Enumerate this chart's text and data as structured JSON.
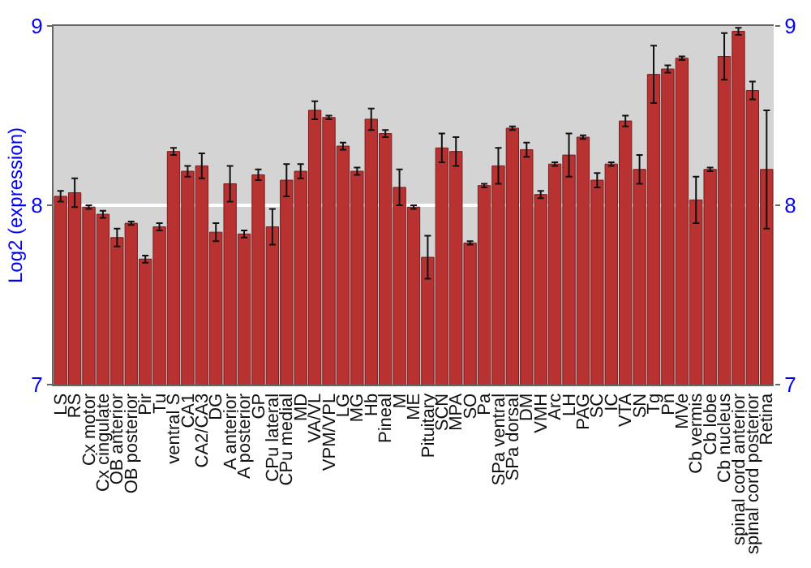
{
  "chart_data": {
    "type": "bar",
    "ylabel": "Log2 (expression)",
    "categories": [
      "LS",
      "RS",
      "Cx motor",
      "Cx cingulate",
      "OB anterior",
      "OB posterior",
      "Pir",
      "Tu",
      "ventral S",
      "CA1",
      "CA2/CA3",
      "DG",
      "A anterior",
      "A posterior",
      "GP",
      "CPu lateral",
      "CPu medial",
      "MD",
      "VA/VL",
      "VPM/VPL",
      "LG",
      "MG",
      "Hb",
      "Pineal",
      "M",
      "ME",
      "Pituitary",
      "SCN",
      "MPA",
      "SO",
      "Pa",
      "SPa ventral",
      "SPa dorsal",
      "DM",
      "VMH",
      "Arc",
      "LH",
      "PAG",
      "SC",
      "IC",
      "VTA",
      "SN",
      "Tg",
      "Pn",
      "MVe",
      "Cb vermis",
      "Cb lobe",
      "Cb nucleus",
      "spinal cord anterior",
      "spinal cord posterior",
      "Retina"
    ],
    "series": [
      {
        "color": "#b83232",
        "values": [
          8.05,
          8.07,
          7.99,
          7.95,
          7.82,
          7.9,
          7.7,
          7.88,
          8.3,
          8.19,
          8.22,
          7.85,
          8.12,
          7.84,
          8.17,
          7.88,
          8.14,
          8.19,
          8.53,
          8.49,
          8.33,
          8.19,
          8.48,
          8.4,
          8.1,
          7.99,
          7.71,
          8.32,
          8.3,
          7.79,
          8.11,
          8.22,
          8.43,
          8.31,
          8.06,
          8.23,
          8.28,
          8.38,
          8.14,
          8.23,
          8.47,
          8.2,
          8.73,
          8.76,
          8.82,
          8.03,
          8.2,
          8.83,
          8.97,
          8.64,
          8.2
        ],
        "errors": [
          0.03,
          0.08,
          0.01,
          0.02,
          0.05,
          0.01,
          0.02,
          0.02,
          0.02,
          0.03,
          0.07,
          0.05,
          0.1,
          0.02,
          0.03,
          0.1,
          0.09,
          0.04,
          0.05,
          0.01,
          0.02,
          0.02,
          0.06,
          0.02,
          0.1,
          0.01,
          0.12,
          0.08,
          0.08,
          0.01,
          0.01,
          0.1,
          0.01,
          0.04,
          0.02,
          0.01,
          0.12,
          0.01,
          0.04,
          0.01,
          0.03,
          0.08,
          0.16,
          0.02,
          0.01,
          0.13,
          0.01,
          0.13,
          0.02,
          0.05,
          0.33
        ]
      }
    ],
    "ylim": [
      7,
      9
    ],
    "yticks": [
      7,
      8,
      9
    ],
    "y2lim": [
      7,
      9
    ],
    "y2ticks": [
      7,
      8,
      9
    ],
    "grid": "y"
  }
}
